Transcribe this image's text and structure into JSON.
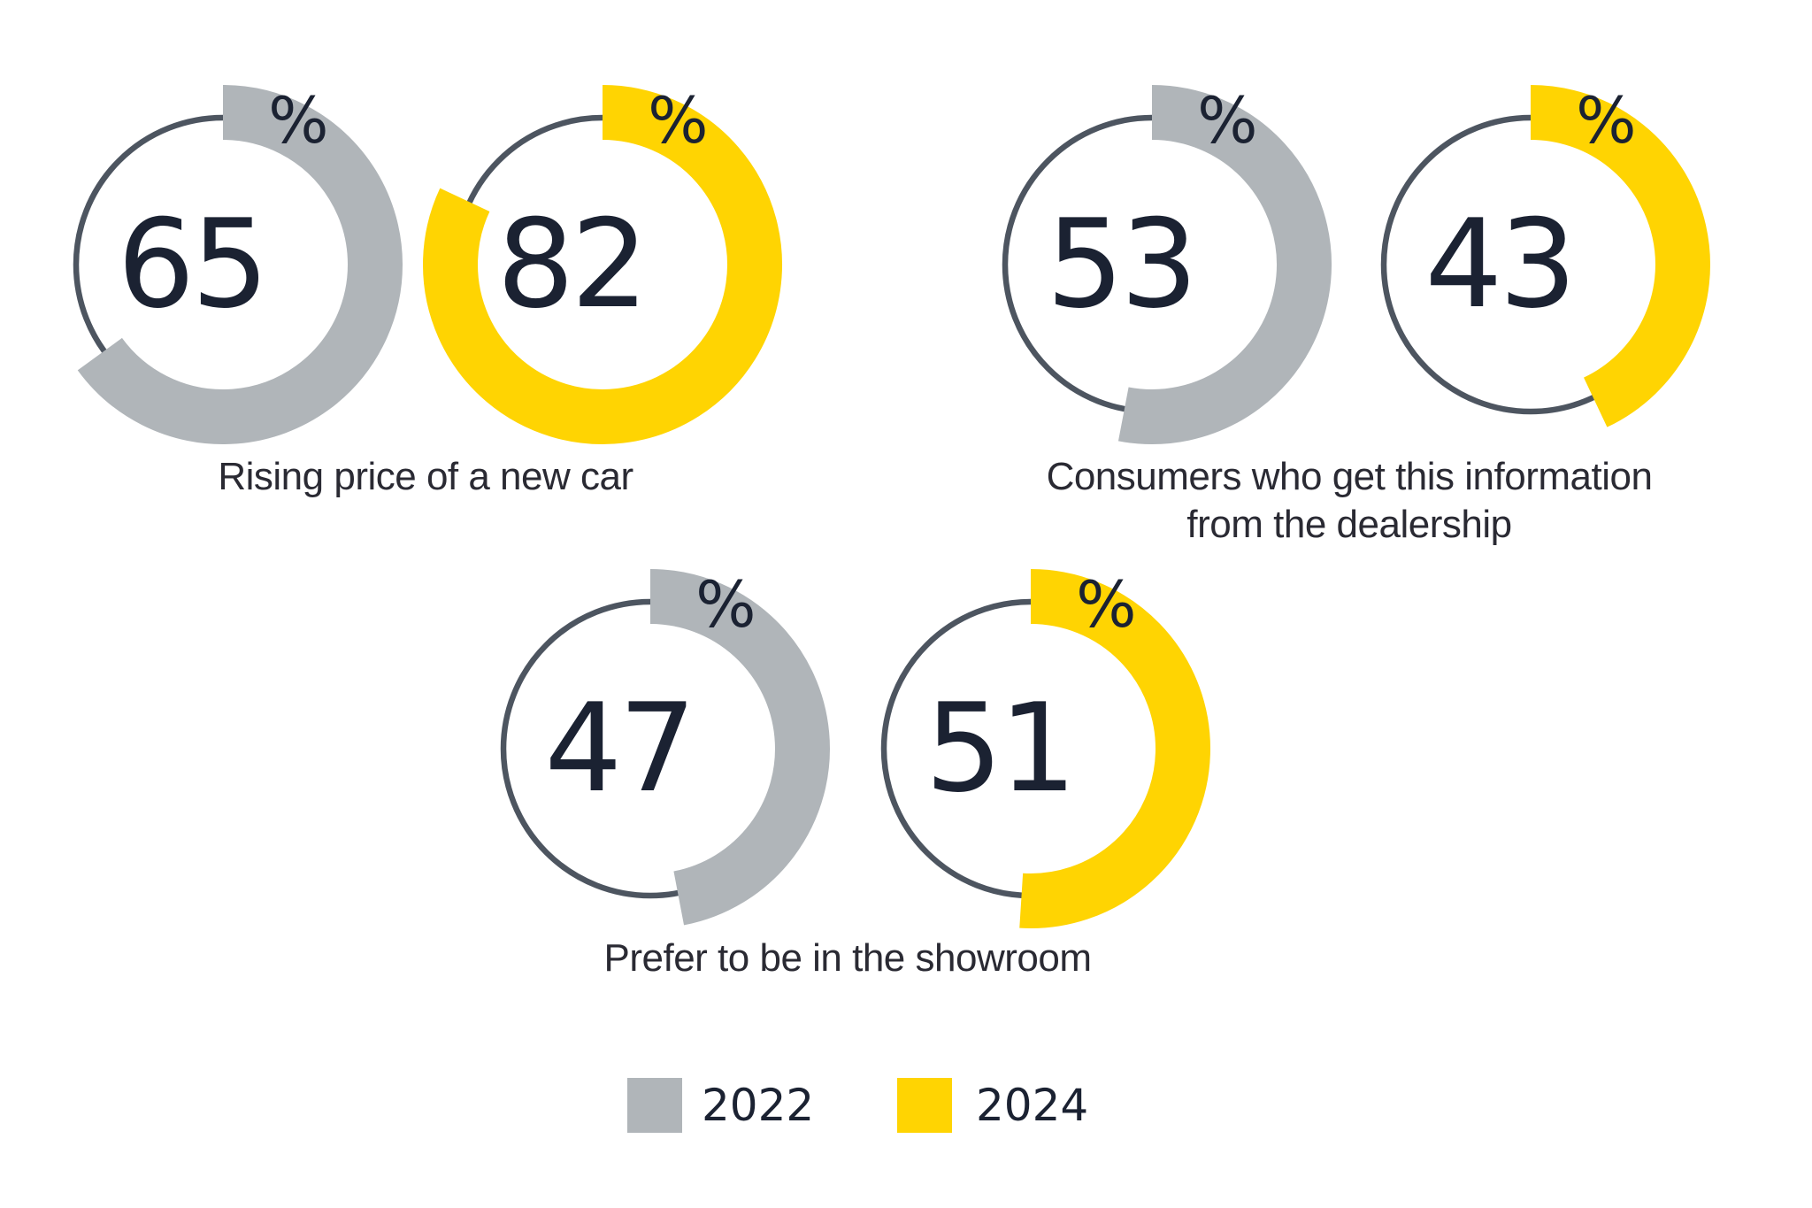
{
  "chart_data": {
    "type": "donut",
    "unit": "%",
    "legend_position": "bottom",
    "series_names": [
      "2022",
      "2024"
    ],
    "series_colors": [
      "#B0B5B9",
      "#FFD402"
    ],
    "track_color": "#4D5560",
    "groups": [
      {
        "caption": "Rising price of a new car",
        "caption_lines": [
          "Rising price of a new car"
        ],
        "series": [
          {
            "name": "2022",
            "value": 65
          },
          {
            "name": "2024",
            "value": 82
          }
        ]
      },
      {
        "caption": "Consumers who get this information from the dealership",
        "caption_lines": [
          "Consumers who get this information",
          "from the dealership"
        ],
        "series": [
          {
            "name": "2022",
            "value": 53
          },
          {
            "name": "2024",
            "value": 43
          }
        ]
      },
      {
        "caption": "Prefer to be in the showroom",
        "caption_lines": [
          "Prefer to be in the showroom"
        ],
        "series": [
          {
            "name": "2022",
            "value": 47
          },
          {
            "name": "2024",
            "value": 51
          }
        ]
      }
    ]
  }
}
